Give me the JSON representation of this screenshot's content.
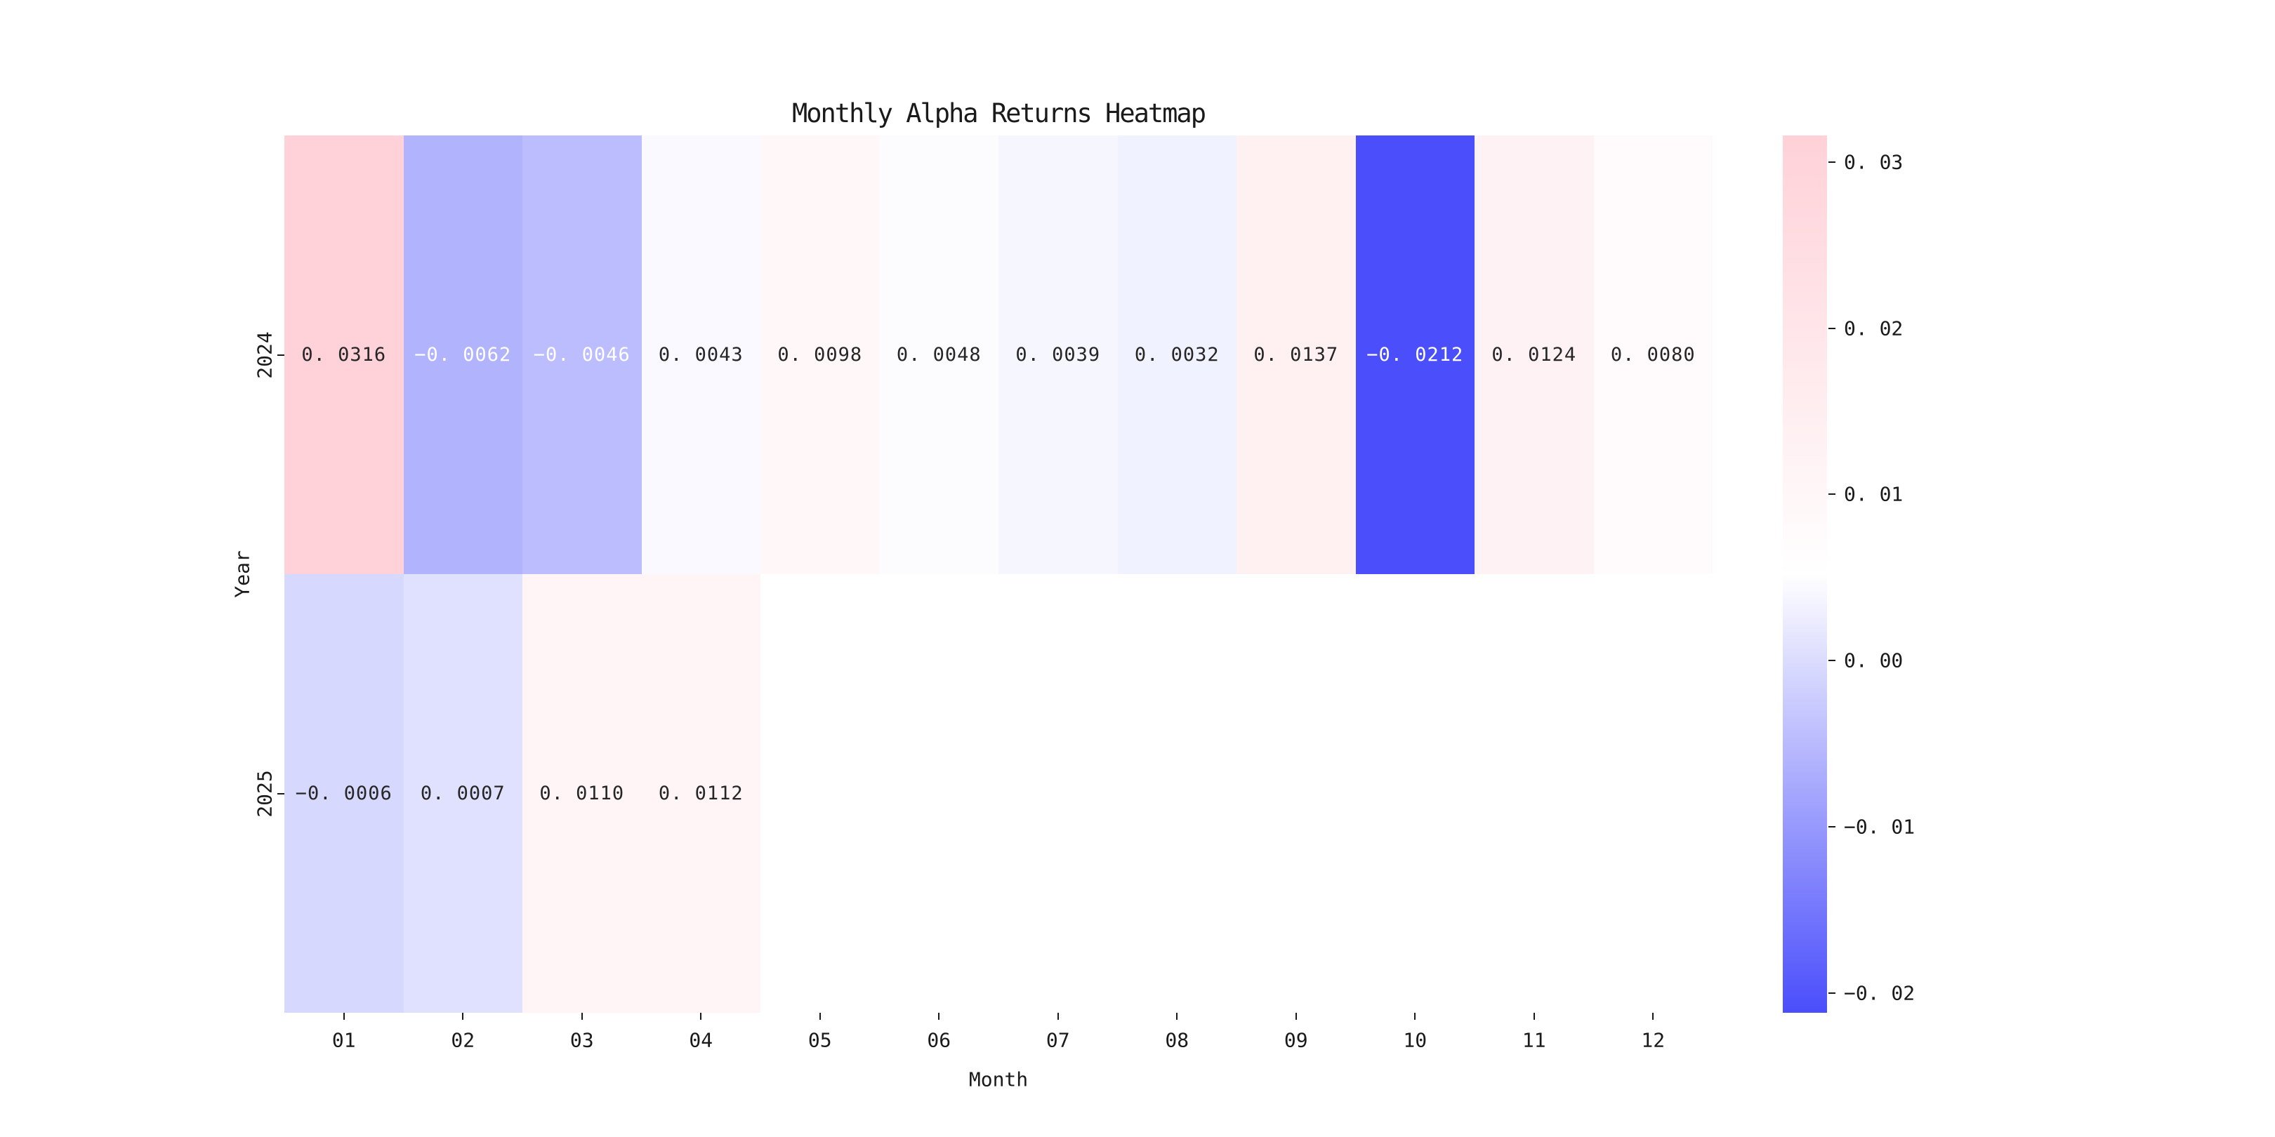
{
  "chart_data": {
    "type": "heatmap",
    "title": "Monthly Alpha Returns Heatmap",
    "xlabel": "Month",
    "ylabel": "Year",
    "x_categories": [
      "01",
      "02",
      "03",
      "04",
      "05",
      "06",
      "07",
      "08",
      "09",
      "10",
      "11",
      "12"
    ],
    "y_categories": [
      "2024",
      "2025"
    ],
    "values": [
      [
        0.0316,
        -0.0062,
        -0.0046,
        0.0043,
        0.0098,
        0.0048,
        0.0039,
        0.0032,
        0.0137,
        -0.0212,
        0.0124,
        0.008
      ],
      [
        -0.0006,
        0.0007,
        0.011,
        0.0112,
        null,
        null,
        null,
        null,
        null,
        null,
        null,
        null
      ]
    ],
    "annotations": [
      [
        "0. 0316",
        "−0. 0062",
        "−0. 0046",
        "0. 0043",
        "0. 0098",
        "0. 0048",
        "0. 0039",
        "0. 0032",
        "0. 0137",
        "−0. 0212",
        "0. 0124",
        "0. 0080"
      ],
      [
        "−0. 0006",
        "0. 0007",
        "0. 0110",
        "0. 0112",
        "",
        "",
        "",
        "",
        "",
        "",
        "",
        ""
      ]
    ],
    "vmin": -0.0212,
    "vmax": 0.0316,
    "colormap": {
      "low": "#4a4efb",
      "mid": "#ffffff",
      "high": "#ffd1d8"
    },
    "empty_cell_color": "#ffffff",
    "annotation_text_dark": "#262626",
    "annotation_text_light": "#ffffff",
    "axis_text_color": "#1a1a1a",
    "colorbar": {
      "ticks": [
        {
          "value": 0.03,
          "label": "0. 03"
        },
        {
          "value": 0.02,
          "label": "0. 02"
        },
        {
          "value": 0.01,
          "label": "0. 01"
        },
        {
          "value": 0.0,
          "label": "0. 00"
        },
        {
          "value": -0.01,
          "label": "−0. 01"
        },
        {
          "value": -0.02,
          "label": "−0. 02"
        }
      ]
    },
    "legend_position": "right",
    "grid": false
  }
}
